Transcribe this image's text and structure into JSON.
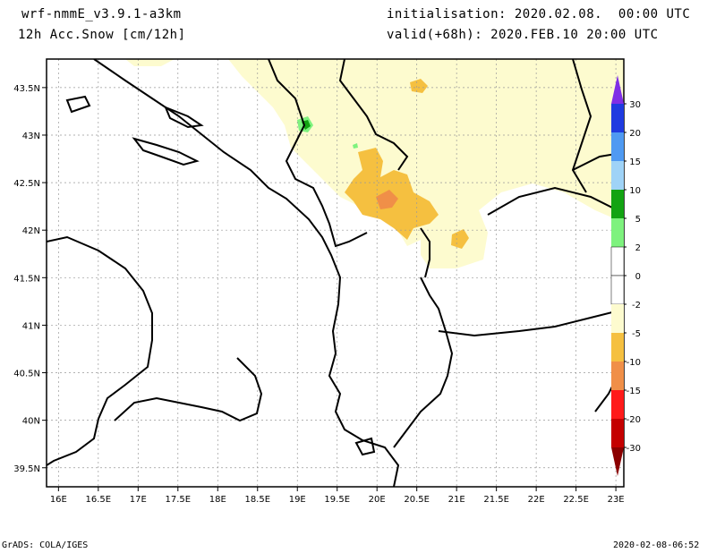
{
  "header": {
    "model": "wrf-nmmE_v3.9.1-a3km",
    "variable": "12h Acc.Snow [cm/12h]",
    "initialisation": "initialisation: 2020.02.08.  00:00 UTC",
    "valid": "valid(+68h): 2020.FEB.10 20:00 UTC"
  },
  "footer": {
    "left": "GrADS: COLA/IGES",
    "right": "2020-02-08-06:52"
  },
  "map": {
    "lon_labels": [
      "16E",
      "16.5E",
      "17E",
      "17.5E",
      "18E",
      "18.5E",
      "19E",
      "19.5E",
      "20E",
      "20.5E",
      "21E",
      "21.5E",
      "22E",
      "22.5E",
      "23E"
    ],
    "lat_labels": [
      "43.5N",
      "43N",
      "42.5N",
      "42N",
      "41.5N",
      "41N",
      "40.5N",
      "40N",
      "39.5N"
    ],
    "lon_values": [
      16,
      16.5,
      17,
      17.5,
      18,
      18.5,
      19,
      19.5,
      20,
      20.5,
      21,
      21.5,
      22,
      22.5,
      23
    ],
    "lat_values": [
      43.5,
      43,
      42.5,
      42,
      41.5,
      41,
      40.5,
      40,
      39.5
    ],
    "lon_range": [
      15.85,
      23.1
    ],
    "lat_range": [
      39.3,
      43.8
    ],
    "grid": true
  },
  "colorbar": {
    "labels": [
      "30",
      "20",
      "15",
      "10",
      "5",
      "2",
      "0",
      "-2",
      "-5",
      "-10",
      "-15",
      "-20",
      "-30"
    ],
    "bins": [
      {
        "color": "#7f2ee6"
      },
      {
        "color": "#1f3be0"
      },
      {
        "color": "#4f9af2"
      },
      {
        "color": "#9fd3f7"
      },
      {
        "color": "#12a312"
      },
      {
        "color": "#7ef27e"
      },
      {
        "color": "#ffffff"
      },
      {
        "color": "#ffffff"
      },
      {
        "color": "#fdfbcf"
      },
      {
        "color": "#f5c040"
      },
      {
        "color": "#f08f48"
      },
      {
        "color": "#ff1a1a"
      },
      {
        "color": "#c40000"
      },
      {
        "color": "#8b0000"
      }
    ]
  },
  "snow_colors": {
    "light": "#fdfbcf",
    "medium": "#f5c040",
    "heavy": "#f08f48",
    "green": "#12a312",
    "lightgreen": "#7ef27e"
  }
}
